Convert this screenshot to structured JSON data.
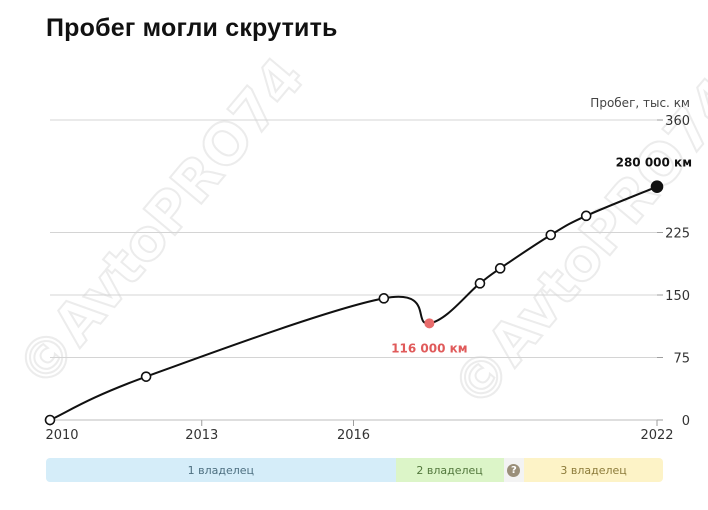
{
  "title": "Пробег могли скрутить",
  "watermark": "©AvtoPRO74",
  "chart_data": {
    "type": "line",
    "ylabel": "Пробег, тыс. км",
    "ylim": [
      0,
      360
    ],
    "yticks": [
      0,
      75,
      150,
      225,
      360
    ],
    "xlim": [
      2010,
      2022
    ],
    "xticks": [
      2010,
      2013,
      2016,
      2022
    ],
    "series": [
      {
        "values_x": [
          2010.0,
          2011.9,
          2016.6,
          2017.5,
          2018.5,
          2018.9,
          2019.9,
          2020.6,
          2022.0
        ],
        "values_y": [
          0,
          52,
          146,
          116,
          164,
          182,
          222,
          245,
          280
        ]
      }
    ],
    "annotations": [
      {
        "x": 2017.5,
        "y": 116,
        "label": "116 000 км",
        "color": "#e05a5a"
      },
      {
        "x": 2022.0,
        "y": 280,
        "label": "280 000 км",
        "color": "#111111"
      }
    ]
  },
  "owners": [
    {
      "label": "1 владелец",
      "from": 2010.0,
      "to": 2016.8,
      "bg": "#d5edf9",
      "fg": "#4d6f80"
    },
    {
      "label": "2 владелец",
      "from": 2016.8,
      "to": 2018.9,
      "bg": "#dcf5c8",
      "fg": "#52773c"
    },
    {
      "label": "?",
      "from": 2018.9,
      "to": 2019.3,
      "bg": "#f3f3f3",
      "fg": "#ffffff",
      "icon": true
    },
    {
      "label": "3 владелец",
      "from": 2019.3,
      "to": 2022.0,
      "bg": "#fdf3c7",
      "fg": "#8c7b3a"
    }
  ],
  "colors": {
    "line": "#111111",
    "grid": "#d4d4d4",
    "low": "#e86b6b",
    "unknown": "#9a8f7a"
  }
}
